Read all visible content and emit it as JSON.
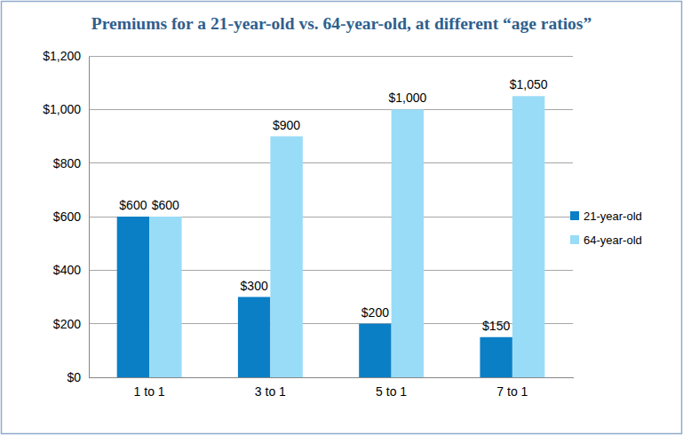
{
  "chart_data": {
    "type": "bar",
    "title": "Premiums for a 21-year-old vs. 64-year-old, at different “age ratios”",
    "categories": [
      "1 to 1",
      "3 to 1",
      "5 to 1",
      "7 to 1"
    ],
    "series": [
      {
        "name": "21-year-old",
        "color": "#0a7fc6",
        "values": [
          600,
          300,
          200,
          150
        ],
        "value_labels": [
          "$600",
          "$300",
          "$200",
          "$150"
        ]
      },
      {
        "name": "64-year-old",
        "color": "#99dcf8",
        "values": [
          600,
          900,
          1000,
          1050
        ],
        "value_labels": [
          "$600",
          "$900",
          "$1,000",
          "$1,050"
        ]
      }
    ],
    "ylim": [
      0,
      1200
    ],
    "yticks": [
      {
        "value": 0,
        "label": "$0"
      },
      {
        "value": 200,
        "label": "$200"
      },
      {
        "value": 400,
        "label": "$400"
      },
      {
        "value": 600,
        "label": "$600"
      },
      {
        "value": 800,
        "label": "$800"
      },
      {
        "value": 1000,
        "label": "$1,000"
      },
      {
        "value": 1200,
        "label": "$1,200"
      }
    ],
    "grid": true,
    "legend": "right",
    "data_labels": true
  }
}
